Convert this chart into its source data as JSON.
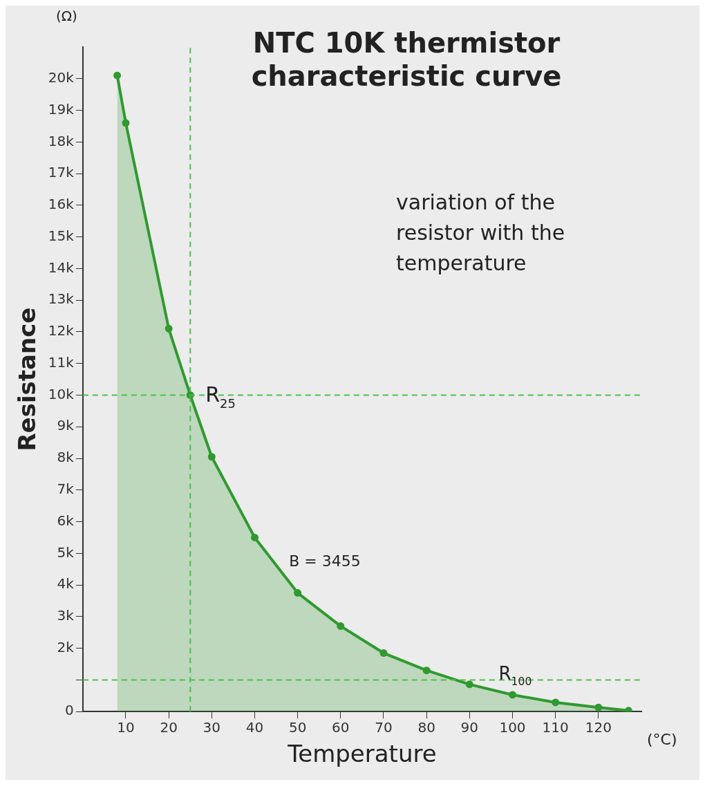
{
  "chart_data": {
    "type": "area",
    "title": "NTC 10K thermistor characteristic curve",
    "xlabel": "Temperature",
    "ylabel": "Resistance",
    "x": [
      8,
      10,
      20,
      25,
      30,
      40,
      50,
      60,
      70,
      80,
      90,
      100,
      110,
      120,
      127
    ],
    "series": [
      {
        "color": "#2f9a2f",
        "values": [
          20100,
          18600,
          12100,
          10000,
          8050,
          5500,
          3750,
          2700,
          1850,
          1300,
          860,
          530,
          290,
          130,
          30
        ]
      }
    ],
    "xlim": [
      0,
      130
    ],
    "xticks": [
      10,
      20,
      30,
      40,
      50,
      60,
      70,
      80,
      90,
      100,
      110,
      120
    ],
    "ylim": [
      0,
      21000
    ],
    "yticks": [
      0,
      {
        "value": 1000,
        "label": null
      },
      {
        "value": 2000,
        "label": "2k"
      },
      {
        "value": 3000,
        "label": "3k"
      },
      {
        "value": 4000,
        "label": "4k"
      },
      {
        "value": 5000,
        "label": "5k"
      },
      {
        "value": 6000,
        "label": "6k"
      },
      {
        "value": 7000,
        "label": "7k"
      },
      {
        "value": 8000,
        "label": "8k"
      },
      {
        "value": 9000,
        "label": "9k"
      },
      {
        "value": 10000,
        "label": "10k"
      },
      {
        "value": 11000,
        "label": "11k"
      },
      {
        "value": 12000,
        "label": "12k"
      },
      {
        "value": 13000,
        "label": "13k"
      },
      {
        "value": 14000,
        "label": "14k"
      },
      {
        "value": 15000,
        "label": "15k"
      },
      {
        "value": 16000,
        "label": "16k"
      },
      {
        "value": 17000,
        "label": "17k"
      },
      {
        "value": 18000,
        "label": "18k"
      },
      {
        "value": 19000,
        "label": "19k"
      },
      {
        "value": 20000,
        "label": "20k"
      }
    ],
    "ref_lines": [
      {
        "axis": "x",
        "value": 25,
        "color": "#4cbf4c",
        "line_style": "dashed"
      },
      {
        "axis": "y",
        "value": 10000,
        "color": "#4cbf4c",
        "line_style": "dashed"
      },
      {
        "axis": "y",
        "value": 1000,
        "color": "#4cbf4c",
        "line_style": "dashed"
      }
    ],
    "annotations": [
      {
        "text": "R$_{25}$",
        "x": 25,
        "y": 10000
      },
      {
        "text": "R$_{100}$",
        "x": 100,
        "y": 530
      },
      "B = 3455",
      "variation of the resistor with the temperature",
      "(Ω)",
      "(°C)"
    ],
    "marker": "circle",
    "grid": false,
    "legend": false
  }
}
